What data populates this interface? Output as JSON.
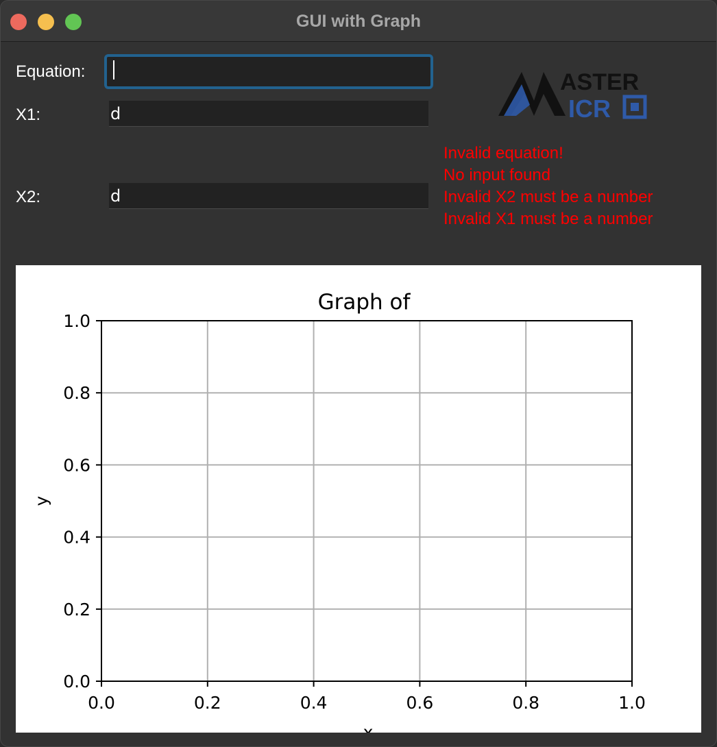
{
  "window": {
    "title": "GUI with Graph"
  },
  "form": {
    "equation_label": "Equation:",
    "equation_value": "",
    "x1_label": "X1:",
    "x1_value": "d",
    "x2_label": "X2:",
    "x2_value": "d"
  },
  "logo": {
    "line1": "ASTER",
    "line2": "ICR",
    "letter": "M"
  },
  "errors": [
    "Invalid equation!",
    "No input found",
    "Invalid X2 must be a number",
    "Invalid X1 must be a number"
  ],
  "colors": {
    "error": "#ff0000",
    "focus_ring": "#22628f",
    "logo_blue": "#2f5aa8"
  },
  "chart_data": {
    "type": "line",
    "title": "Graph of",
    "xlabel": "x",
    "ylabel": "y",
    "xlim": [
      0,
      1
    ],
    "ylim": [
      0,
      1
    ],
    "xticks": [
      "0.0",
      "0.2",
      "0.4",
      "0.6",
      "0.8",
      "1.0"
    ],
    "yticks": [
      "0.0",
      "0.2",
      "0.4",
      "0.6",
      "0.8",
      "1.0"
    ],
    "grid": true,
    "series": []
  }
}
